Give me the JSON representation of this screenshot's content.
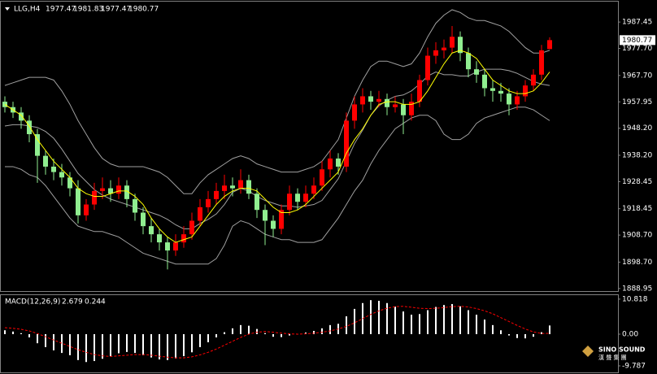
{
  "chart_data": {
    "type": "candlestick",
    "title": "LLG,H4",
    "ylim": [
      1888,
      1995
    ],
    "yticks": [
      1987.45,
      {
        "value": 1977.7,
        "label": "1977.70"
      },
      {
        "value": 1967.7,
        "label": "1967.70"
      },
      1957.95,
      {
        "value": 1948.2,
        "label": "1948.20"
      },
      {
        "value": 1938.2,
        "label": "1938.20"
      },
      1928.45,
      1918.45,
      {
        "value": 1908.7,
        "label": "1908.70"
      },
      {
        "value": 1898.7,
        "label": "1898.70"
      },
      1888.95
    ],
    "up_color": "#ff0000",
    "down_color": "#90ee90",
    "candles": {
      "open": [
        1958,
        1956,
        1954,
        1951,
        1946,
        1938,
        1934,
        1932,
        1930,
        1926,
        1916,
        1920,
        1925,
        1926,
        1924,
        1927,
        1922,
        1917,
        1912,
        1909,
        1906,
        1903,
        1906,
        1909,
        1914,
        1919,
        1922,
        1925,
        1927,
        1926,
        1929,
        1924,
        1918,
        1914,
        1911,
        1918,
        1924,
        1921,
        1924,
        1927,
        1933,
        1937,
        1934,
        1951,
        1957,
        1960,
        1958,
        1959,
        1956,
        1957,
        1953,
        1958,
        1966,
        1975,
        1977,
        1978,
        1982,
        1976,
        1970,
        1968,
        1963,
        1962,
        1961,
        1957,
        1960,
        1964,
        1968,
        1977.47
      ],
      "high": [
        1960,
        1958,
        1956,
        1953,
        1948,
        1940,
        1937,
        1935,
        1932,
        1929,
        1922,
        1928,
        1930,
        1929,
        1930,
        1929,
        1924,
        1919,
        1915,
        1911,
        1908,
        1909,
        1912,
        1917,
        1922,
        1925,
        1928,
        1931,
        1930,
        1933,
        1931,
        1926,
        1920,
        1916,
        1920,
        1927,
        1926,
        1927,
        1930,
        1936,
        1940,
        1939,
        1954,
        1960,
        1963,
        1962,
        1962,
        1961,
        1960,
        1959,
        1961,
        1968,
        1978,
        1980,
        1981,
        1986,
        1984,
        1978,
        1973,
        1970,
        1966,
        1965,
        1963,
        1962,
        1966,
        1970,
        1979,
        1981.83
      ],
      "low": [
        1954,
        1952,
        1948,
        1943,
        1928,
        1931,
        1929,
        1927,
        1923,
        1913,
        1914,
        1918,
        1922,
        1921,
        1922,
        1919,
        1914,
        1909,
        1906,
        1903,
        1896,
        1901,
        1904,
        1907,
        1912,
        1917,
        1920,
        1922,
        1923,
        1924,
        1922,
        1915,
        1905,
        1908,
        1909,
        1916,
        1918,
        1919,
        1922,
        1925,
        1930,
        1931,
        1932,
        1948,
        1954,
        1955,
        1956,
        1953,
        1954,
        1946,
        1951,
        1956,
        1964,
        1972,
        1974,
        1976,
        1973,
        1967,
        1965,
        1960,
        1958,
        1958,
        1953,
        1955,
        1958,
        1962,
        1966,
        1977.47
      ],
      "close": [
        1956,
        1954,
        1951,
        1946,
        1938,
        1934,
        1932,
        1930,
        1926,
        1916,
        1920,
        1925,
        1926,
        1924,
        1927,
        1922,
        1917,
        1912,
        1909,
        1906,
        1903,
        1906,
        1909,
        1914,
        1919,
        1922,
        1925,
        1927,
        1926,
        1929,
        1924,
        1918,
        1914,
        1911,
        1918,
        1924,
        1921,
        1924,
        1927,
        1933,
        1937,
        1934,
        1951,
        1957,
        1960,
        1958,
        1959,
        1956,
        1957,
        1953,
        1958,
        1966,
        1975,
        1977,
        1978,
        1982,
        1976,
        1970,
        1968,
        1963,
        1962,
        1961,
        1957,
        1960,
        1964,
        1968,
        1977,
        1980.77
      ]
    },
    "bollinger": {
      "color": "#a0a0a0",
      "upper": [
        1964,
        1965,
        1966,
        1967,
        1967,
        1967,
        1966,
        1962,
        1957,
        1951,
        1946,
        1941,
        1937,
        1935,
        1934,
        1934,
        1934,
        1934,
        1933,
        1932,
        1930,
        1927,
        1924,
        1924,
        1928,
        1931,
        1933,
        1935,
        1937,
        1938,
        1937,
        1935,
        1934,
        1933,
        1932,
        1932,
        1932,
        1933,
        1934,
        1936,
        1940,
        1944,
        1952,
        1960,
        1966,
        1971,
        1973,
        1973,
        1972,
        1971,
        1972,
        1976,
        1982,
        1987,
        1990,
        1992,
        1991,
        1989,
        1988,
        1988,
        1987,
        1986,
        1984,
        1981,
        1978,
        1976,
        1976,
        1977
      ],
      "middle": [
        1949,
        1949.5,
        1949.5,
        1949,
        1948.5,
        1947,
        1944.5,
        1940.5,
        1936,
        1931.5,
        1928.5,
        1925.5,
        1923.5,
        1922,
        1921,
        1920,
        1919,
        1918,
        1917,
        1916,
        1914.5,
        1912.5,
        1911,
        1911,
        1913,
        1914.5,
        1916.5,
        1920,
        1924.5,
        1926,
        1925,
        1923,
        1921.5,
        1920.5,
        1919.5,
        1919.5,
        1919,
        1919.5,
        1920,
        1921.5,
        1925.5,
        1929.5,
        1936,
        1942.5,
        1947.5,
        1953,
        1956.5,
        1958.5,
        1960,
        1960.5,
        1962,
        1964.5,
        1967.5,
        1969,
        1968,
        1968,
        1967.5,
        1967.5,
        1969,
        1970,
        1970,
        1970,
        1969.5,
        1968.5,
        1967,
        1965.5,
        1964.5,
        1964
      ],
      "lower": [
        1934,
        1934,
        1933,
        1931,
        1930,
        1927,
        1923,
        1919,
        1915,
        1912,
        1911,
        1910,
        1910,
        1909,
        1908,
        1906,
        1904,
        1902,
        1901,
        1900,
        1899,
        1898,
        1898,
        1898,
        1898,
        1898,
        1900,
        1905,
        1912,
        1914,
        1913,
        1911,
        1909,
        1908,
        1907,
        1907,
        1906,
        1906,
        1906,
        1907,
        1911,
        1915,
        1920,
        1925,
        1929,
        1935,
        1940,
        1944,
        1948,
        1950,
        1952,
        1953,
        1953,
        1951,
        1946,
        1944,
        1944,
        1946,
        1950,
        1952,
        1953,
        1954,
        1955,
        1956,
        1956,
        1955,
        1953,
        1951
      ]
    },
    "ma": {
      "color": "#ffff00",
      "values": [
        1957,
        1955,
        1953,
        1949,
        1944,
        1940,
        1936,
        1933,
        1930,
        1926,
        1924,
        1923,
        1923,
        1924,
        1925,
        1925,
        1923,
        1920,
        1915,
        1911,
        1908,
        1906,
        1907,
        1908,
        1912,
        1916,
        1920,
        1923,
        1925,
        1926,
        1926,
        1925,
        1922,
        1919,
        1917,
        1917,
        1918,
        1920,
        1923,
        1926,
        1929,
        1932,
        1939,
        1944,
        1948,
        1953,
        1957,
        1958,
        1958,
        1957,
        1957,
        1958,
        1962,
        1967,
        1972,
        1976,
        1977,
        1976,
        1974,
        1970,
        1966,
        1964,
        1962,
        1961,
        1961,
        1962,
        1965,
        1969
      ]
    },
    "macd": {
      "label": "MACD(12,26,9)",
      "ylim": [
        -11.8,
        12.3
      ],
      "yticks": [
        10.818,
        {
          "value": 0,
          "label": "0.00"
        },
        -9.787
      ],
      "hist_color": "#ffffff",
      "signal_color": "#ff0000",
      "histogram": [
        1.2,
        0.8,
        0.3,
        -1.0,
        -2.8,
        -4.0,
        -5.0,
        -5.8,
        -6.5,
        -8.0,
        -8.6,
        -8.3,
        -7.6,
        -6.8,
        -5.9,
        -5.5,
        -5.8,
        -6.5,
        -7.2,
        -7.8,
        -8.0,
        -7.5,
        -6.8,
        -5.6,
        -4.0,
        -2.5,
        -1.0,
        0.6,
        1.8,
        2.8,
        2.6,
        1.6,
        0.3,
        -0.8,
        -0.9,
        -0.4,
        0.0,
        0.5,
        1.0,
        1.8,
        2.8,
        3.2,
        5.5,
        7.8,
        9.6,
        10.5,
        10.3,
        9.6,
        8.5,
        7.0,
        6.0,
        6.2,
        7.4,
        8.4,
        9.0,
        9.3,
        8.6,
        7.4,
        6.0,
        4.5,
        2.8,
        1.2,
        -0.4,
        -1.2,
        -1.3,
        -0.8,
        0.6,
        2.679
      ],
      "signal": [
        2.0,
        1.8,
        1.5,
        1.0,
        0.2,
        -0.8,
        -1.8,
        -2.8,
        -3.8,
        -4.8,
        -5.6,
        -6.3,
        -6.7,
        -6.9,
        -6.7,
        -6.5,
        -6.3,
        -6.3,
        -6.5,
        -6.8,
        -7.1,
        -7.3,
        -7.3,
        -7.0,
        -6.4,
        -5.6,
        -4.6,
        -3.4,
        -2.2,
        -1.0,
        0.0,
        0.6,
        0.8,
        0.6,
        0.3,
        0.1,
        0.0,
        0.1,
        0.3,
        0.6,
        1.0,
        1.6,
        2.4,
        3.5,
        4.8,
        6.1,
        7.2,
        8.0,
        8.5,
        8.6,
        8.3,
        8.0,
        7.9,
        8.0,
        8.2,
        8.5,
        8.6,
        8.4,
        7.9,
        7.2,
        6.3,
        5.1,
        3.9,
        2.7,
        1.6,
        0.7,
        0.2,
        0.244
      ]
    },
    "watermark": {
      "name": "SINO SOUND",
      "subtitle": "漢 聲 集 團"
    }
  }
}
